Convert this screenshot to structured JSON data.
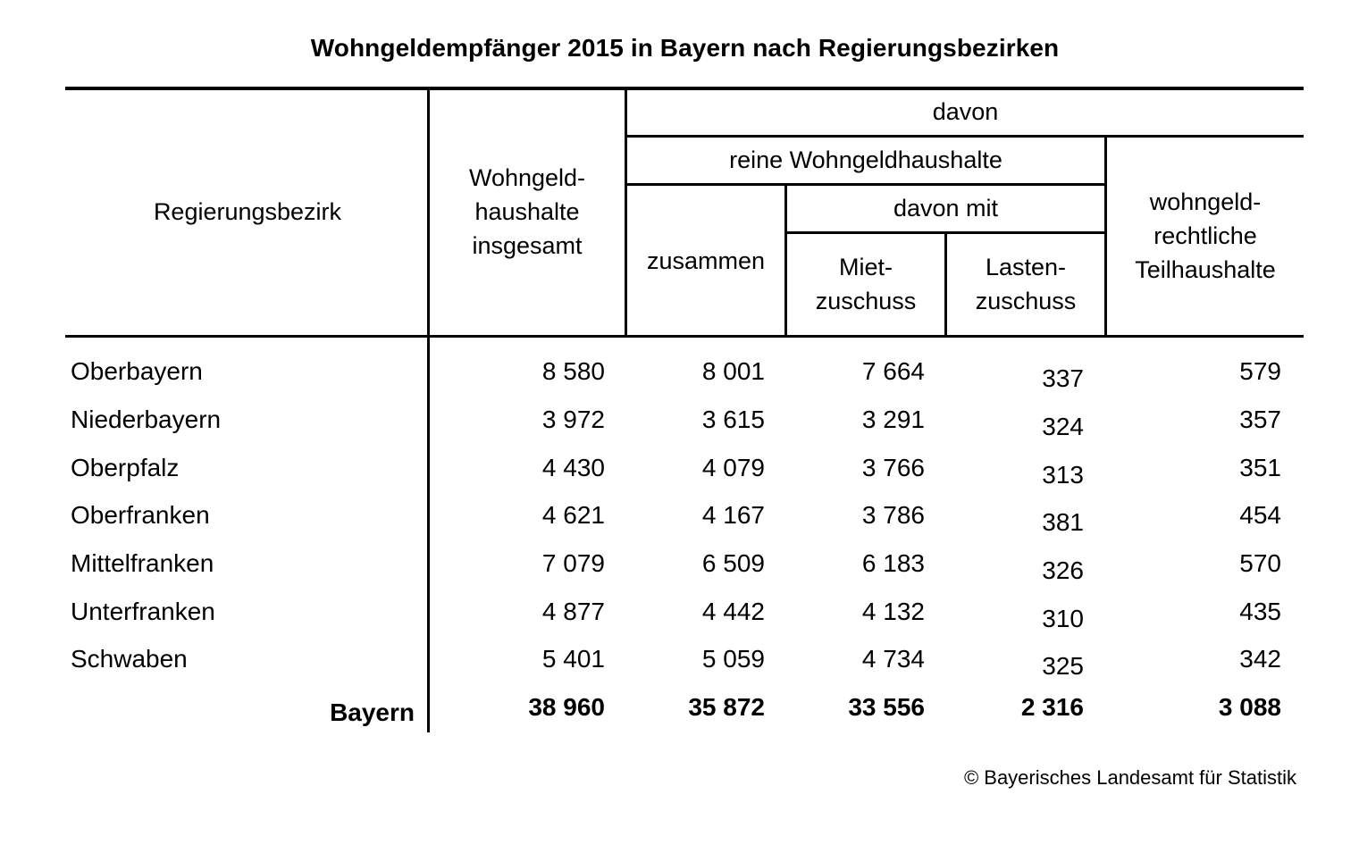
{
  "title": "Wohngeldempfänger 2015 in Bayern nach Regierungsbezirken",
  "headers": {
    "region": "Regierungsbezirk",
    "total": [
      "Wohngeld-",
      "haushalte",
      "insgesamt"
    ],
    "davon": "davon",
    "reine": "reine Wohngeldhaushalte",
    "davon_mit": "davon mit",
    "zusammen": "zusammen",
    "miet": [
      "Miet-",
      "zuschuss"
    ],
    "lasten": [
      "Lasten-",
      "zuschuss"
    ],
    "teil": [
      "wohngeld-",
      "rechtliche",
      "Teilhaushalte"
    ]
  },
  "rows": [
    {
      "name": "Oberbayern",
      "total": "8 580",
      "zusammen": "8 001",
      "miet": "7 664",
      "lasten": "337",
      "teil": "579"
    },
    {
      "name": "Niederbayern",
      "total": "3 972",
      "zusammen": "3 615",
      "miet": "3 291",
      "lasten": "324",
      "teil": "357"
    },
    {
      "name": "Oberpfalz",
      "total": "4 430",
      "zusammen": "4 079",
      "miet": "3 766",
      "lasten": "313",
      "teil": "351"
    },
    {
      "name": "Oberfranken",
      "total": "4 621",
      "zusammen": "4 167",
      "miet": "3 786",
      "lasten": "381",
      "teil": "454"
    },
    {
      "name": "Mittelfranken",
      "total": "7 079",
      "zusammen": "6 509",
      "miet": "6 183",
      "lasten": "326",
      "teil": "570"
    },
    {
      "name": "Unterfranken",
      "total": "4 877",
      "zusammen": "4 442",
      "miet": "4 132",
      "lasten": "310",
      "teil": "435"
    },
    {
      "name": "Schwaben",
      "total": "5 401",
      "zusammen": "5 059",
      "miet": "4 734",
      "lasten": "325",
      "teil": "342"
    }
  ],
  "total_row": {
    "name": "Bayern",
    "total": "38 960",
    "zusammen": "35 872",
    "miet": "33 556",
    "lasten": "2 316",
    "teil": "3 088"
  },
  "footer": "© Bayerisches Landesamt für Statistik"
}
